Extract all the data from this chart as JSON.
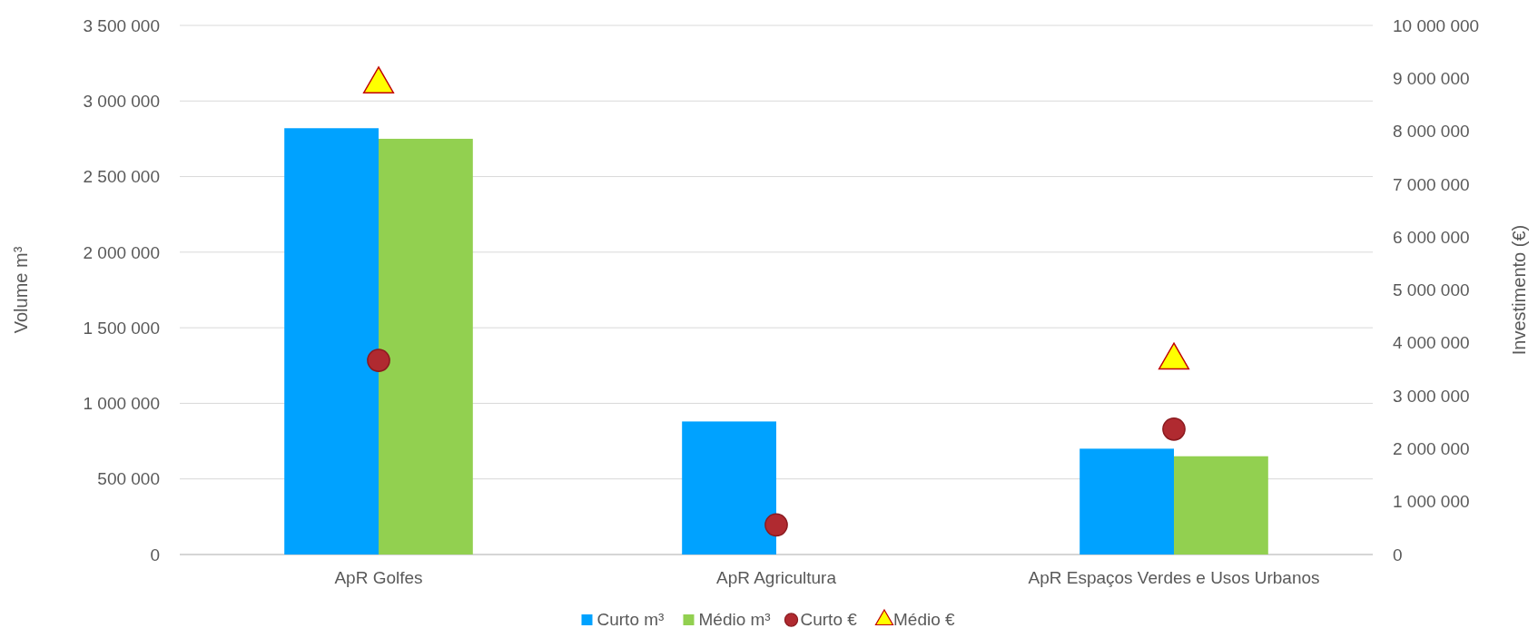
{
  "chart_data": {
    "type": "bar",
    "categories": [
      "ApR Golfes",
      "ApR Agricultura",
      "ApR Espaços Verdes e Usos Urbanos"
    ],
    "series": [
      {
        "name": "Curto m³",
        "color": "#00a2ff",
        "values": [
          2820000,
          880000,
          700000
        ]
      },
      {
        "name": "Médio m³",
        "color": "#92d050",
        "values": [
          2750000,
          null,
          650000
        ]
      },
      {
        "name": "Curto €",
        "type": "scatter",
        "axis": "y2",
        "marker": "circle",
        "color": "#b02a30",
        "values": [
          3670000,
          560000,
          2370000
        ]
      },
      {
        "name": "Médio €",
        "type": "scatter",
        "axis": "y2",
        "marker": "triangle",
        "color": "#ffff00",
        "values": [
          8890000,
          null,
          3670000
        ]
      }
    ],
    "ylabel": "Volume m³",
    "y2label": "Investimento (€)",
    "ylim": [
      0,
      3500000
    ],
    "yticks": [
      {
        "value": 0,
        "label": "0"
      },
      {
        "value": 500000,
        "label": "500 000"
      },
      {
        "value": 1000000,
        "label": "1 000 000"
      },
      {
        "value": 1500000,
        "label": "1 500 000"
      },
      {
        "value": 2000000,
        "label": "2 000 000"
      },
      {
        "value": 2500000,
        "label": "2 500 000"
      },
      {
        "value": 3000000,
        "label": "3 000 000"
      },
      {
        "value": 3500000,
        "label": "3 500 000"
      }
    ],
    "y2lim": [
      0,
      10000000
    ],
    "y2ticks": [
      {
        "value": 0,
        "label": "0"
      },
      {
        "value": 1000000,
        "label": "1 000 000"
      },
      {
        "value": 2000000,
        "label": "2 000 000"
      },
      {
        "value": 3000000,
        "label": "3 000 000"
      },
      {
        "value": 4000000,
        "label": "4 000 000"
      },
      {
        "value": 5000000,
        "label": "5 000 000"
      },
      {
        "value": 6000000,
        "label": "6 000 000"
      },
      {
        "value": 7000000,
        "label": "7 000 000"
      },
      {
        "value": 8000000,
        "label": "8 000 000"
      },
      {
        "value": 9000000,
        "label": "9 000 000"
      },
      {
        "value": 10000000,
        "label": "10 000 000"
      }
    ],
    "grid": "y",
    "legend": "bottom"
  }
}
